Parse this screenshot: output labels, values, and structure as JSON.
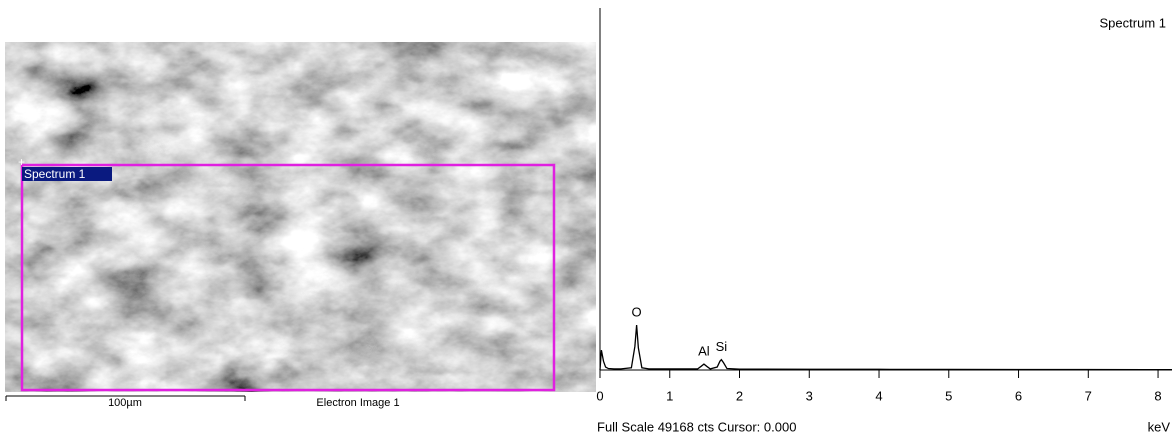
{
  "image_panel": {
    "region_label": "Spectrum 1",
    "scale_bar": "100µm",
    "caption": "Electron Image 1"
  },
  "chart_data": {
    "type": "line",
    "title": "Spectrum 1",
    "xlabel": "keV",
    "footer": "Full Scale 49168 cts Cursor: 0.000",
    "xlim": [
      0,
      8.2
    ],
    "xticks": [
      0,
      1,
      2,
      3,
      4,
      5,
      6,
      7,
      8
    ],
    "ylim": [
      0,
      49168
    ],
    "color": "#000000",
    "x": [
      0,
      0.02,
      0.05,
      0.08,
      0.12,
      0.2,
      0.3,
      0.45,
      0.5,
      0.525,
      0.55,
      0.6,
      0.7,
      1.0,
      1.4,
      1.45,
      1.49,
      1.53,
      1.58,
      1.68,
      1.72,
      1.74,
      1.77,
      1.82,
      2.0,
      3,
      4,
      5,
      6,
      7,
      8.2
    ],
    "y": [
      0,
      2700,
      1200,
      400,
      200,
      150,
      150,
      300,
      3200,
      6100,
      3000,
      300,
      150,
      150,
      150,
      500,
      800,
      500,
      150,
      400,
      1200,
      1400,
      1000,
      200,
      120,
      100,
      90,
      80,
      70,
      60,
      50
    ],
    "annotations": [
      {
        "text": "O",
        "x": 0.525,
        "y": 6100
      },
      {
        "text": "Al",
        "x": 1.49,
        "y": 800
      },
      {
        "text": "Si",
        "x": 1.74,
        "y": 1400
      }
    ]
  }
}
